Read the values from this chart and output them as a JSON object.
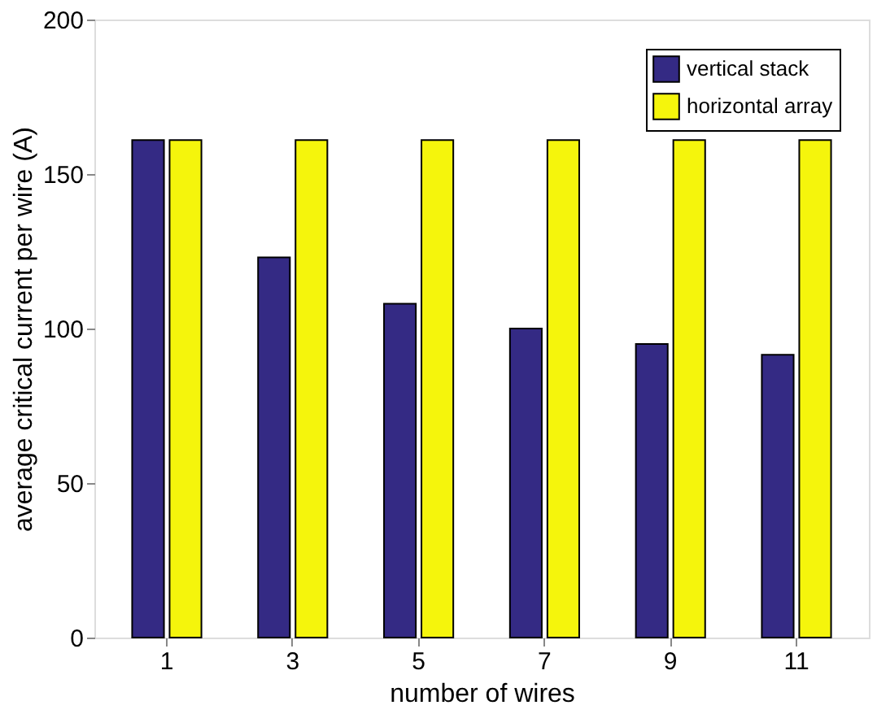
{
  "chart_data": {
    "type": "bar",
    "xlabel": "number of wires",
    "ylabel": "average critical current per wire (A)",
    "categories": [
      "1",
      "3",
      "5",
      "7",
      "9",
      "11"
    ],
    "series": [
      {
        "name": "vertical stack",
        "color": "#342a84",
        "values": [
          161,
          123,
          108,
          100,
          95,
          91.5
        ]
      },
      {
        "name": "horizontal array",
        "color": "#f5f50c",
        "values": [
          161,
          161,
          161,
          161,
          161,
          161
        ]
      }
    ],
    "ylim": [
      0,
      200
    ],
    "yticks": [
      0,
      50,
      100,
      150,
      200
    ],
    "grid": false,
    "legend": "top right"
  }
}
